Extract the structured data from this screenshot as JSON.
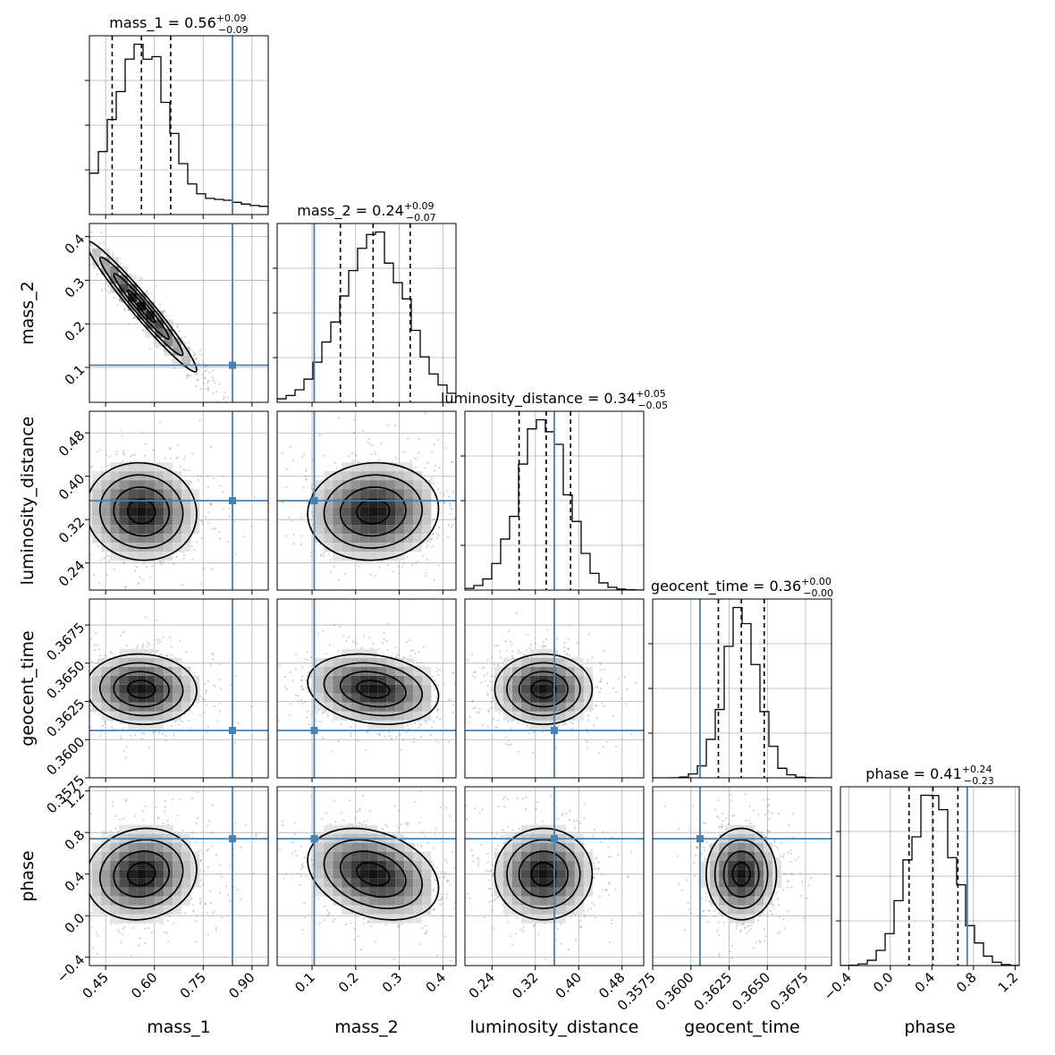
{
  "chart_data": {
    "type": "corner",
    "parameters": [
      "mass_1",
      "mass_2",
      "luminosity_distance",
      "geocent_time",
      "phase"
    ],
    "axis_labels": [
      "mass_1",
      "mass_2",
      "luminosity_distance",
      "geocent_time",
      "phase"
    ],
    "ranges": [
      [
        0.4,
        0.95
      ],
      [
        0.02,
        0.43
      ],
      [
        0.19,
        0.52
      ],
      [
        0.3575,
        0.3692
      ],
      [
        -0.48,
        1.24
      ]
    ],
    "ticks": [
      [
        0.45,
        0.6,
        0.75,
        0.9
      ],
      [
        0.1,
        0.2,
        0.3,
        0.4
      ],
      [
        0.24,
        0.32,
        0.4,
        0.48
      ],
      [
        0.3575,
        0.36,
        0.3625,
        0.365,
        0.3675
      ],
      [
        -0.4,
        0.0,
        0.4,
        0.8,
        1.2
      ]
    ],
    "tick_labels": [
      [
        "0.45",
        "0.60",
        "0.75",
        "0.90"
      ],
      [
        "0.1",
        "0.2",
        "0.3",
        "0.4"
      ],
      [
        "0.24",
        "0.32",
        "0.40",
        "0.48"
      ],
      [
        "0.3575",
        "0.3600",
        "0.3625",
        "0.3650",
        "0.3675"
      ],
      [
        "−0.4",
        "0.0",
        "0.4",
        "0.8",
        "1.2"
      ]
    ],
    "title_prefixes": [
      "mass_1 = 0.56",
      "mass_2 = 0.24",
      "luminosity_distance = 0.34",
      "geocent_time = 0.36",
      "phase = 0.41"
    ],
    "title_upper": [
      "+0.09",
      "+0.09",
      "+0.05",
      "+0.00",
      "+0.24"
    ],
    "title_lower": [
      "−0.09",
      "−0.07",
      "−0.05",
      "−0.00",
      "−0.23"
    ],
    "medians": [
      0.56,
      0.24,
      0.34,
      0.3633,
      0.41
    ],
    "quantiles_lower": [
      0.47,
      0.165,
      0.29,
      0.3618,
      0.18
    ],
    "quantiles_upper": [
      0.65,
      0.325,
      0.385,
      0.3648,
      0.65
    ],
    "truths": [
      0.84,
      0.105,
      0.355,
      0.3606,
      0.74
    ],
    "means": [
      0.56,
      0.24,
      0.335,
      0.3633,
      0.4
    ],
    "stds": [
      0.085,
      0.075,
      0.045,
      0.00115,
      0.22
    ],
    "correlations": [
      [
        1.0,
        -0.97,
        -0.05,
        -0.05,
        0.1
      ],
      [
        -0.97,
        1.0,
        0.05,
        -0.2,
        -0.3
      ],
      [
        -0.05,
        0.05,
        1.0,
        0.0,
        0.0
      ],
      [
        -0.05,
        -0.2,
        0.0,
        1.0,
        0.0
      ],
      [
        0.1,
        -0.3,
        0.0,
        0.0,
        1.0
      ]
    ],
    "line_color": "#4682b4",
    "contour_levels": [
      0.5,
      1.0,
      1.5,
      2.0
    ],
    "grid": true
  }
}
